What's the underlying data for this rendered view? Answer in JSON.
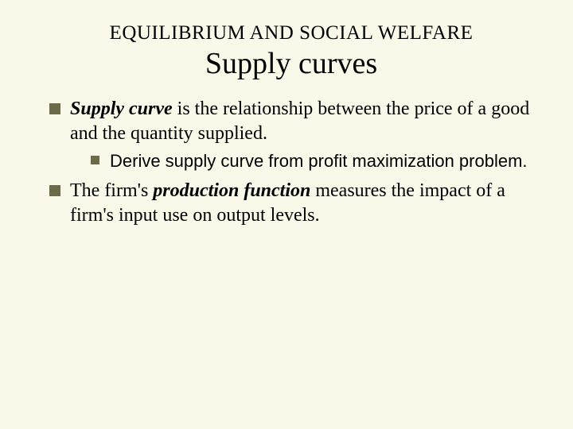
{
  "colors": {
    "background": "#faf8e8",
    "bullet": "#6b6b4a",
    "text": "#000000"
  },
  "typography": {
    "header_fontsize": 25,
    "title_fontsize": 38,
    "body_fontsize": 24,
    "sub_fontsize": 22,
    "serif_family": "Times New Roman",
    "sans_family": "Arial"
  },
  "header": "EQUILIBRIUM AND SOCIAL WELFARE",
  "title": "Supply curves",
  "bullets": [
    {
      "lead": "Supply curve",
      "rest": " is the relationship between the price of a good and the quantity supplied.",
      "sub": [
        "Derive supply curve from profit maximization problem."
      ]
    },
    {
      "pre": "The firm's ",
      "bold": "production function",
      "post": " measures the impact of a firm's input use on output levels."
    }
  ]
}
